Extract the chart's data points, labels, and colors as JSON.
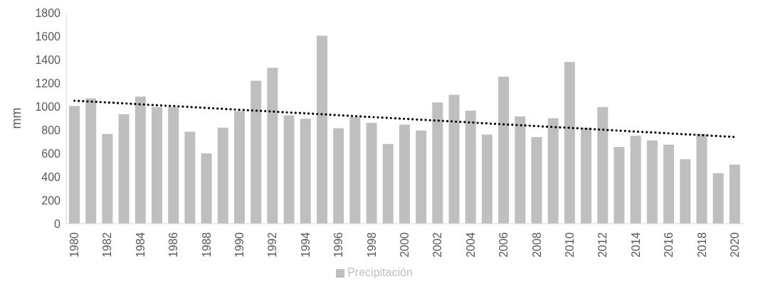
{
  "chart_data": {
    "type": "bar",
    "ylabel": "mm",
    "categories": [
      "1980",
      null,
      "1982",
      null,
      "1984",
      null,
      "1986",
      null,
      "1988",
      null,
      "1990",
      null,
      "1992",
      null,
      "1994",
      null,
      "1996",
      null,
      "1998",
      null,
      "2000",
      null,
      "2002",
      null,
      "2004",
      null,
      "2006",
      null,
      "2008",
      null,
      "2010",
      null,
      "2012",
      null,
      "2014",
      null,
      "2016",
      null,
      "2018",
      null,
      "2020"
    ],
    "series": [
      {
        "name": "Precipitación",
        "color": "#bfbfbf",
        "values": [
          1005,
          1070,
          765,
          935,
          1085,
          995,
          995,
          785,
          600,
          820,
          960,
          1220,
          1330,
          925,
          895,
          1605,
          815,
          910,
          860,
          680,
          845,
          795,
          1035,
          1100,
          965,
          760,
          1255,
          915,
          740,
          900,
          1380,
          820,
          995,
          655,
          750,
          710,
          675,
          550,
          765,
          430,
          505
        ]
      },
      {
        "type": "line",
        "color": "#000000",
        "line_style": "dotted",
        "marker": "none",
        "values": [
          1050,
          1042,
          1035,
          1027,
          1019,
          1011,
          1004,
          996,
          988,
          980,
          972,
          965,
          957,
          949,
          942,
          934,
          926,
          918,
          910,
          903,
          895,
          887,
          880,
          872,
          864,
          856,
          848,
          841,
          833,
          825,
          818,
          810,
          802,
          794,
          786,
          779,
          771,
          763,
          756,
          748,
          740
        ]
      }
    ],
    "ylim": [
      0,
      1800
    ],
    "yticks": [
      0,
      200,
      400,
      600,
      800,
      1000,
      1200,
      1400,
      1600,
      1800
    ],
    "grid": false,
    "legend": "bottom"
  }
}
